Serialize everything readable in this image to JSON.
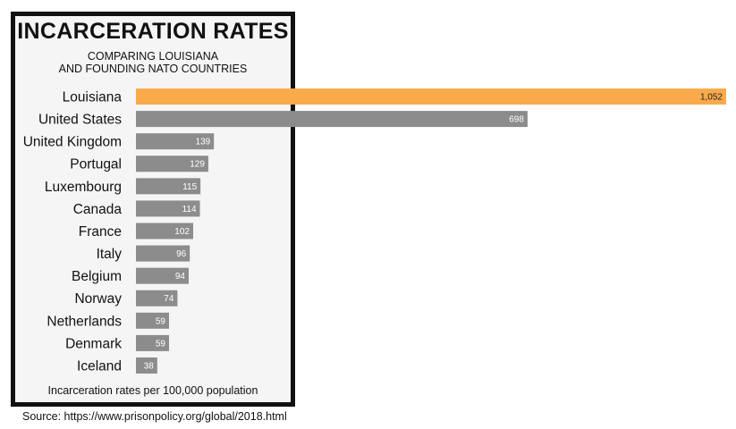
{
  "chart_data": {
    "type": "bar",
    "orientation": "horizontal",
    "title": "INCARCERATION RATES",
    "subtitle": [
      "COMPARING LOUISIANA",
      "AND FOUNDING NATO COUNTRIES"
    ],
    "categories": [
      "Louisiana",
      "United States",
      "United Kingdom",
      "Portugal",
      "Luxembourg",
      "Canada",
      "France",
      "Italy",
      "Belgium",
      "Norway",
      "Netherlands",
      "Denmark",
      "Iceland"
    ],
    "values": [
      1052,
      698,
      139,
      129,
      115,
      114,
      102,
      96,
      94,
      74,
      59,
      59,
      38
    ],
    "value_labels": [
      "1,052",
      "698",
      "139",
      "129",
      "115",
      "114",
      "102",
      "96",
      "94",
      "74",
      "59",
      "59",
      "38"
    ],
    "highlight_category": "Louisiana",
    "xlim": [
      0,
      1052
    ],
    "grid": false,
    "colors": {
      "highlight": "#f9aa4b",
      "bar": "#8c8c8c"
    },
    "footnote": "Incarceration rates per 100,000 population",
    "source": "Source: https://www.prisonpolicy.org/global/2018.html"
  }
}
